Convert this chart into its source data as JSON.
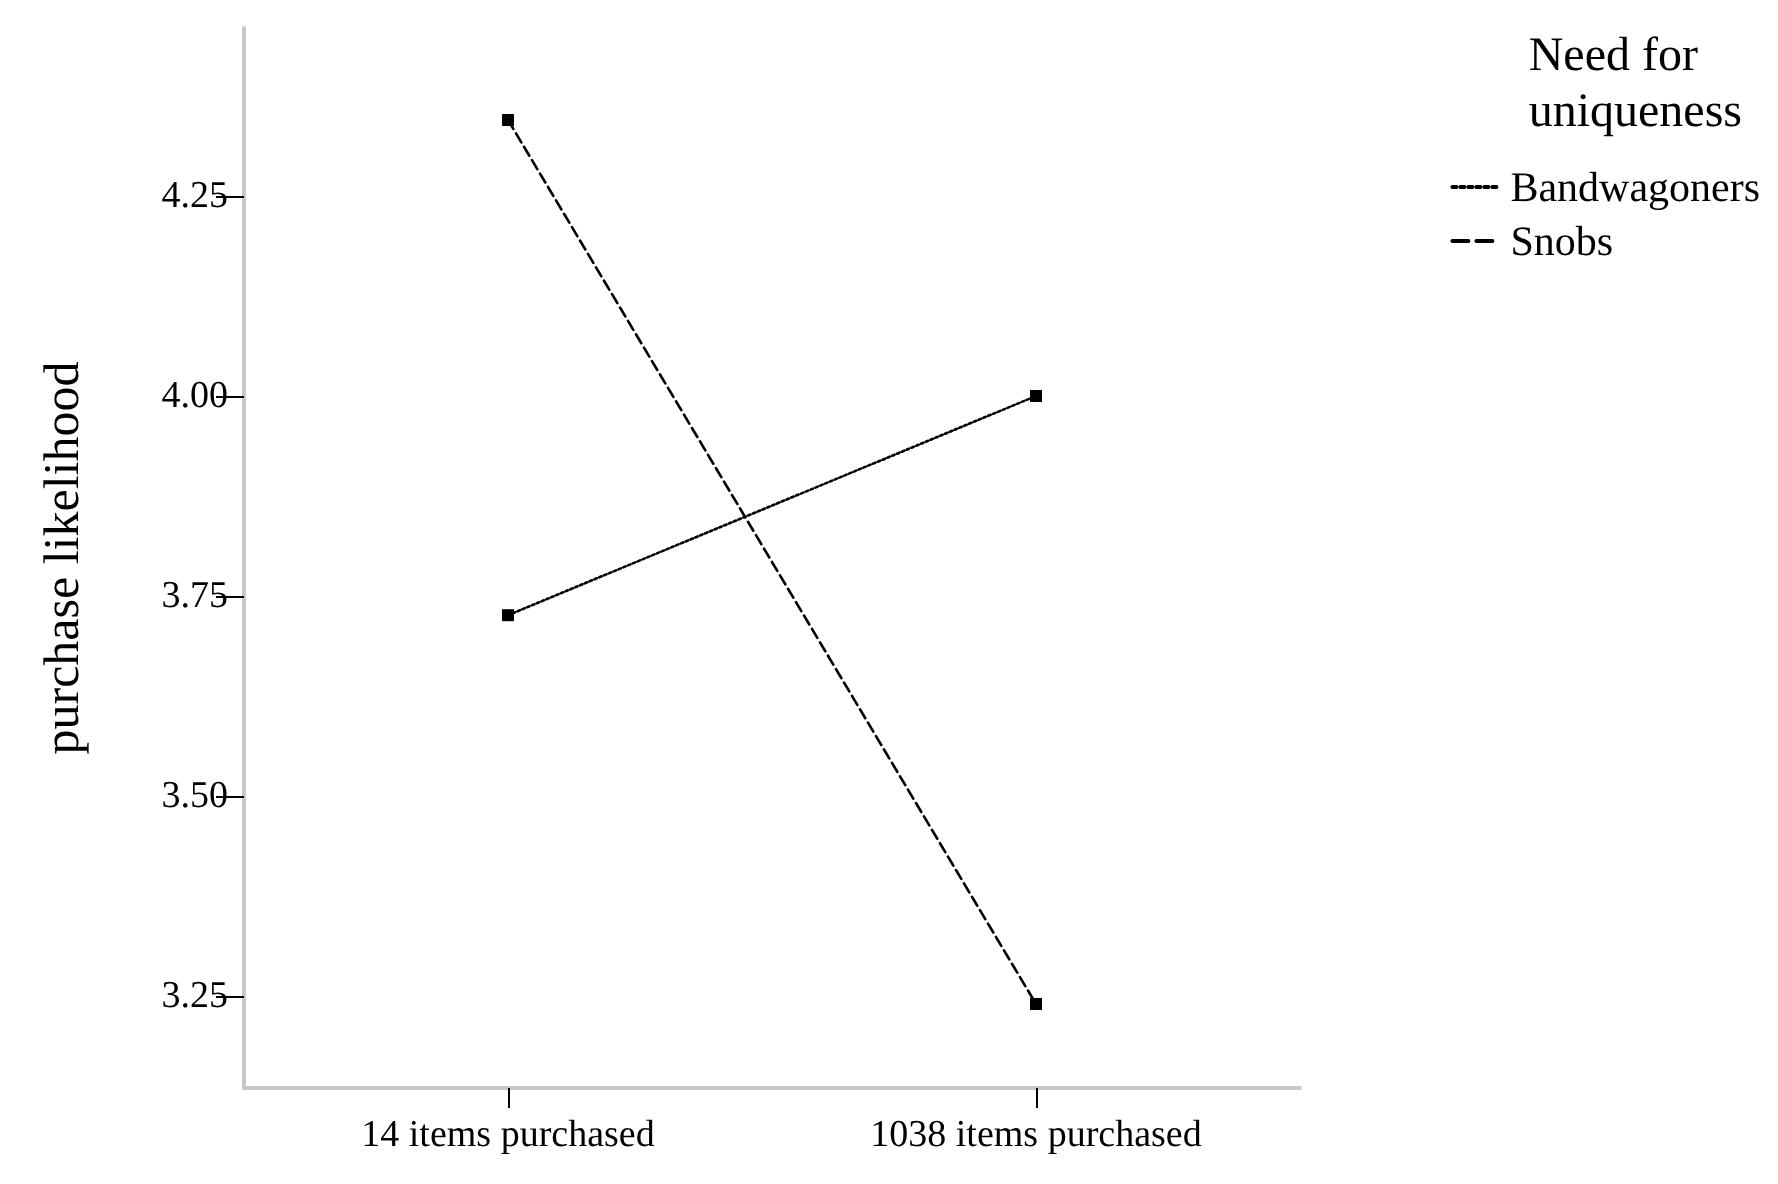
{
  "chart_data": {
    "type": "line",
    "ylabel": "purchase likelihood",
    "legend_title": "Need for uniqueness",
    "categories": [
      "14 items purchased",
      "1038 items purchased"
    ],
    "series": [
      {
        "name": "Bandwagoners",
        "color": "#000000",
        "values": [
          3.726,
          4.0
        ],
        "line_style": "dotted"
      },
      {
        "name": "Snobs",
        "color": "#000000",
        "values": [
          4.345,
          3.24
        ],
        "line_style": "dashed"
      }
    ],
    "ylim": [
      3.135,
      4.46
    ],
    "yticks": [
      {
        "value": 3.25,
        "label": "3.25"
      },
      {
        "value": 3.5,
        "label": "3.50"
      },
      {
        "value": 3.75,
        "label": "3.75"
      },
      {
        "value": 4.0,
        "label": "4.00"
      },
      {
        "value": 4.25,
        "label": "4.25"
      }
    ],
    "grid": false,
    "legend": "top right",
    "marker": "square"
  }
}
